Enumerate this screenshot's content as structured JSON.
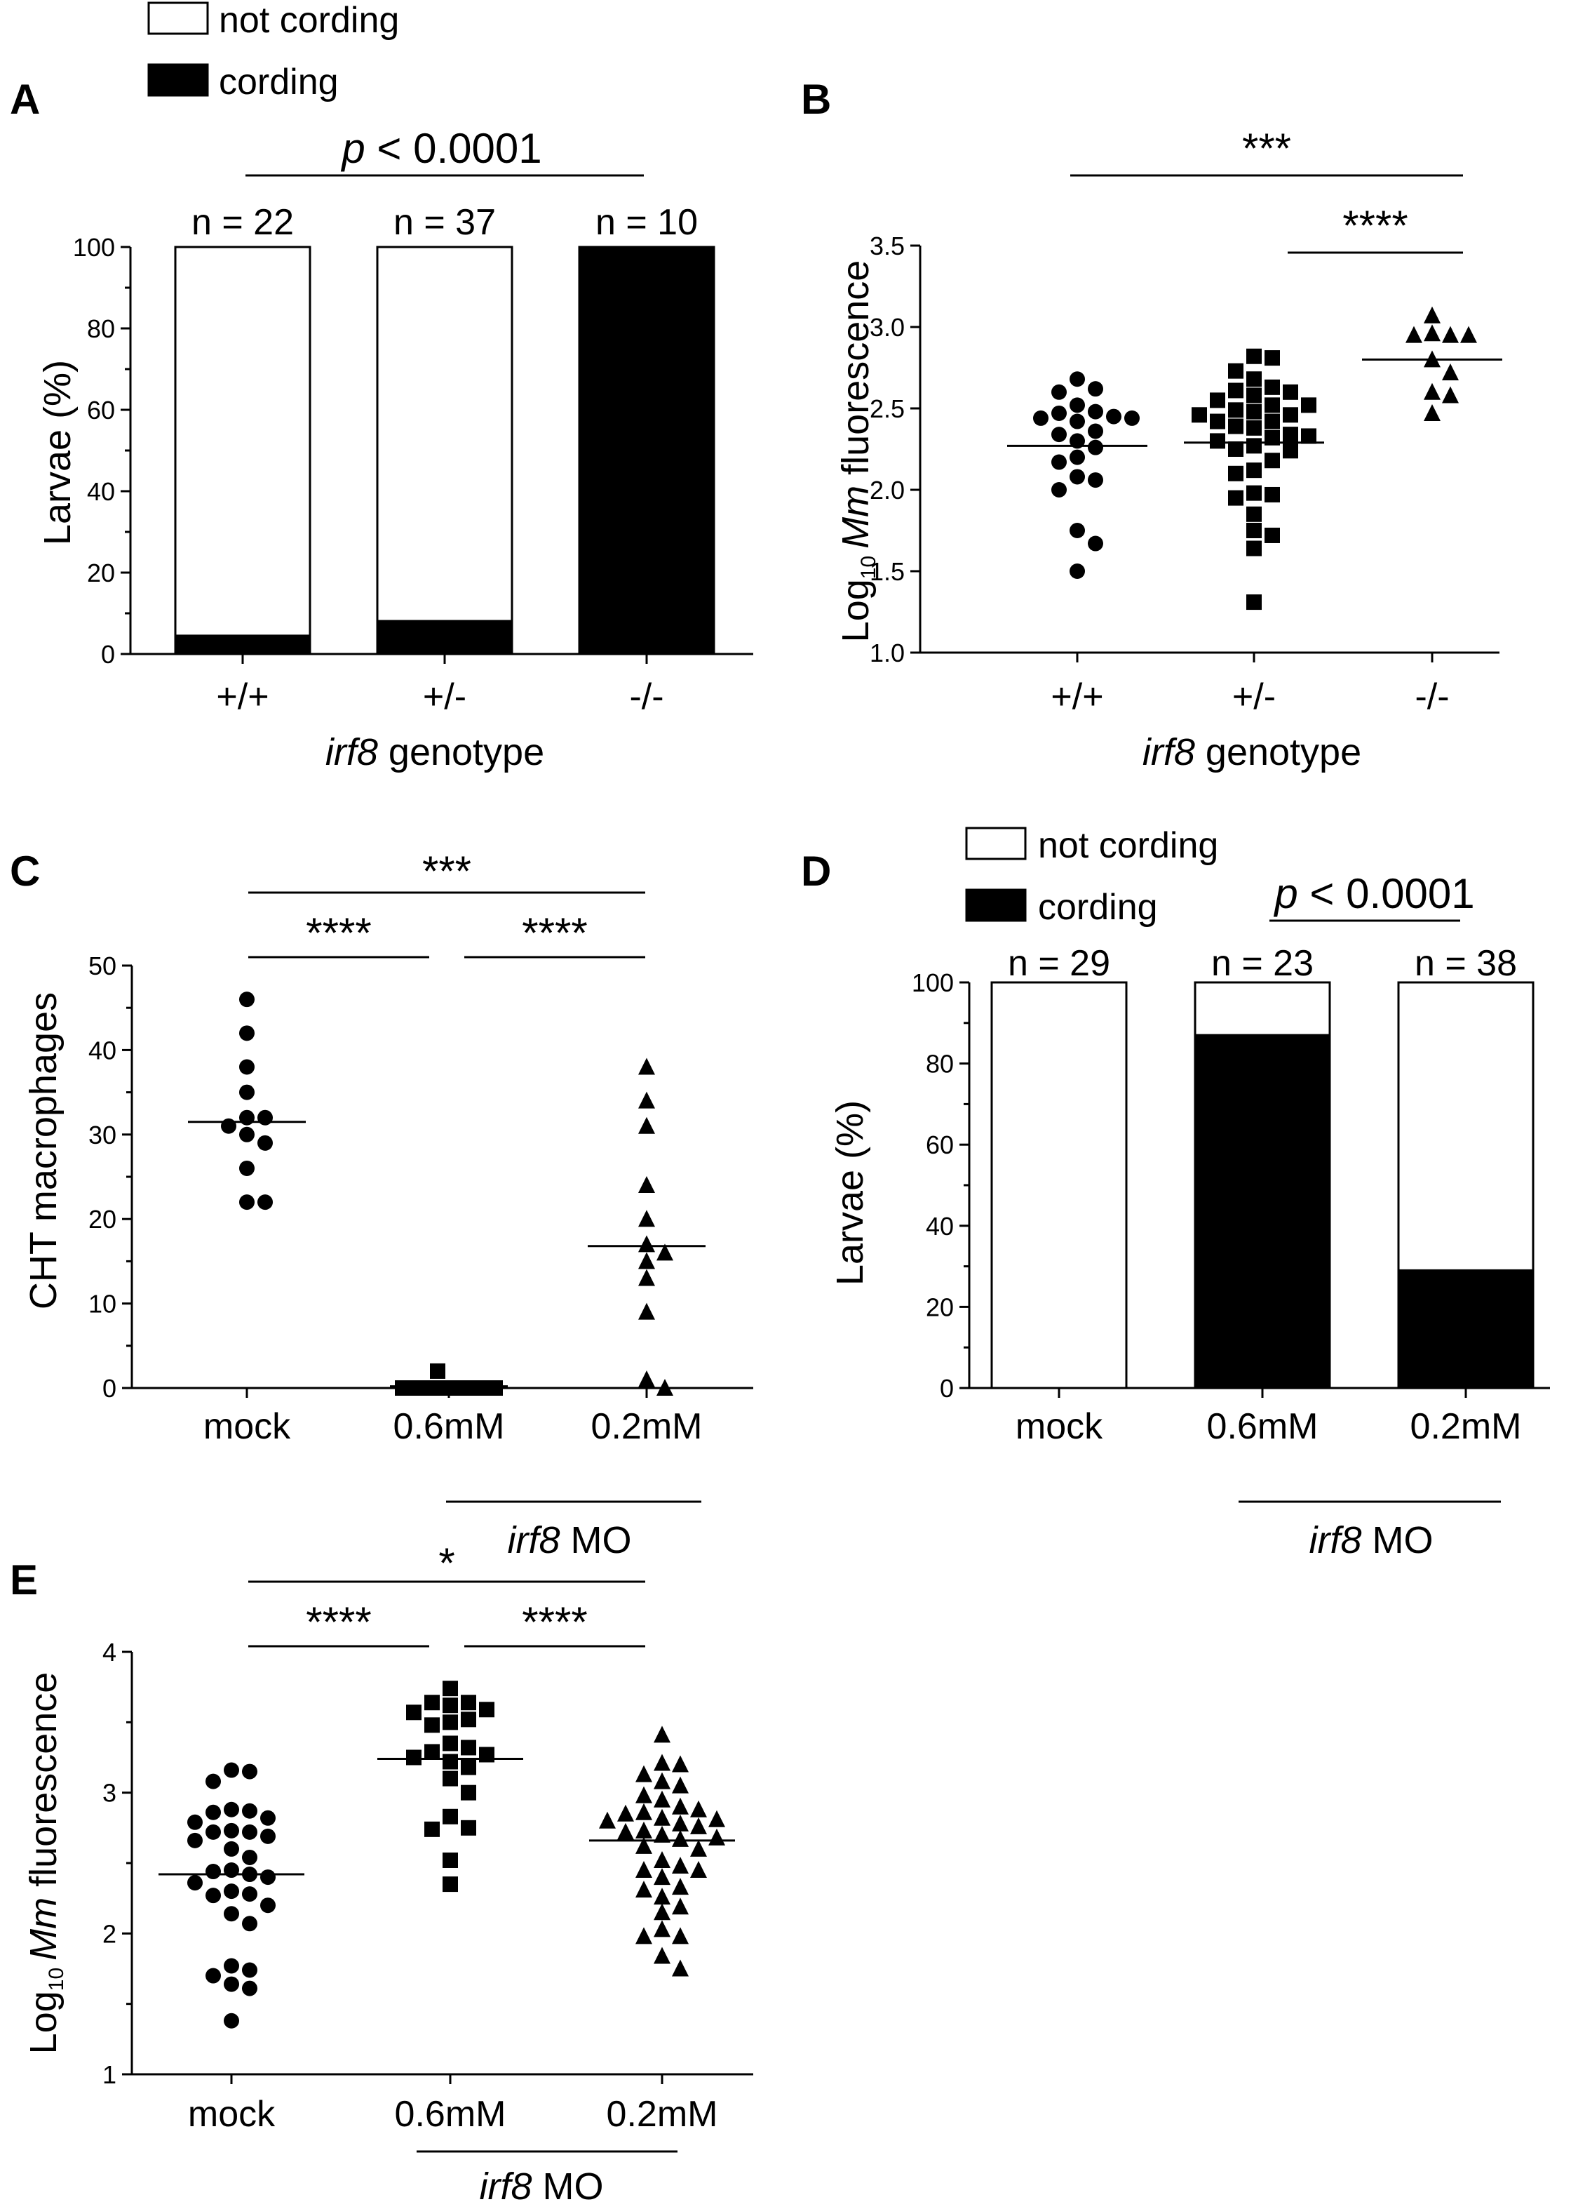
{
  "panels": {
    "A": {
      "letter": "A",
      "legend": [
        "not cording",
        "cording"
      ],
      "xlabel_italic": "irf8",
      "xlabel_rest": " genotype",
      "ylabel": "Larvae (%)",
      "yticks": [
        "0",
        "20",
        "40",
        "60",
        "80",
        "100"
      ],
      "categories": [
        "+/+",
        "+/-",
        "-/-"
      ],
      "n_labels": [
        "n = 22",
        "n = 37",
        "n = 10"
      ],
      "stat_italic": "p",
      "stat_rest": " < 0.0001"
    },
    "B": {
      "letter": "B",
      "ylabel_prefix": "Log",
      "ylabel_sub": "10",
      "ylabel_italic": "Mm",
      "ylabel_rest": " fluorescence",
      "yticks": [
        "1.0",
        "1.5",
        "2.0",
        "2.5",
        "3.0",
        "3.5"
      ],
      "categories": [
        "+/+",
        "+/-",
        "-/-"
      ],
      "xlabel_italic": "irf8",
      "xlabel_rest": " genotype",
      "stats": [
        "***",
        "****"
      ]
    },
    "C": {
      "letter": "C",
      "ylabel": "CHT macrophages",
      "yticks": [
        "0",
        "10",
        "20",
        "30",
        "40",
        "50"
      ],
      "categories": [
        "mock",
        "0.6mM",
        "0.2mM"
      ],
      "group_italic": "irf8",
      "group_rest": " MO",
      "stats": [
        "***",
        "****",
        "****"
      ]
    },
    "D": {
      "letter": "D",
      "legend": [
        "not cording",
        "cording"
      ],
      "ylabel": "Larvae (%)",
      "yticks": [
        "0",
        "20",
        "40",
        "60",
        "80",
        "100"
      ],
      "categories": [
        "mock",
        "0.6mM",
        "0.2mM"
      ],
      "n_labels": [
        "n = 29",
        "n = 23",
        "n = 38"
      ],
      "group_italic": "irf8",
      "group_rest": " MO",
      "stat_italic": "p",
      "stat_rest": " < 0.0001"
    },
    "E": {
      "letter": "E",
      "ylabel_prefix": "Log",
      "ylabel_sub": "10",
      "ylabel_italic": "Mm",
      "ylabel_rest": " fluorescence",
      "yticks": [
        "1",
        "2",
        "3",
        "4"
      ],
      "categories": [
        "mock",
        "0.6mM",
        "0.2mM"
      ],
      "group_italic": "irf8",
      "group_rest": " MO",
      "stats": [
        "*",
        "****",
        "****"
      ]
    }
  },
  "chart_data": [
    {
      "panel": "A",
      "type": "bar",
      "stacked": true,
      "categories": [
        "+/+",
        "+/-",
        "-/-"
      ],
      "series": [
        {
          "name": "cording",
          "color": "#000000",
          "values": [
            4.5,
            8.1,
            100
          ]
        },
        {
          "name": "not cording",
          "color": "#ffffff",
          "values": [
            95.5,
            91.9,
            0
          ]
        }
      ],
      "ylim": [
        0,
        100
      ],
      "n": [
        22,
        37,
        10
      ],
      "comparisons": [
        {
          "from": 0,
          "to": 2,
          "label": "p < 0.0001"
        }
      ]
    },
    {
      "panel": "B",
      "type": "scatter",
      "categories": [
        "+/+",
        "+/-",
        "-/-"
      ],
      "ylim": [
        1.0,
        3.5
      ],
      "series": [
        {
          "category": "+/+",
          "marker": "circle",
          "mean": 2.27,
          "values": [
            2.68,
            2.62,
            2.6,
            2.52,
            2.48,
            2.47,
            2.45,
            2.44,
            2.44,
            2.42,
            2.36,
            2.34,
            2.3,
            2.26,
            2.2,
            2.17,
            2.08,
            2.06,
            2.0,
            1.75,
            1.67,
            1.5
          ]
        },
        {
          "category": "+/-",
          "marker": "square",
          "mean": 2.29,
          "values": [
            2.82,
            2.81,
            2.73,
            2.68,
            2.63,
            2.61,
            2.6,
            2.58,
            2.55,
            2.52,
            2.52,
            2.49,
            2.48,
            2.46,
            2.46,
            2.42,
            2.42,
            2.39,
            2.38,
            2.34,
            2.33,
            2.32,
            2.3,
            2.27,
            2.25,
            2.24,
            2.18,
            2.12,
            2.1,
            1.98,
            1.97,
            1.95,
            1.85,
            1.75,
            1.72,
            1.64,
            1.31
          ]
        },
        {
          "category": "-/-",
          "marker": "triangle",
          "mean": 2.8,
          "values": [
            3.07,
            2.96,
            2.95,
            2.95,
            2.95,
            2.8,
            2.72,
            2.6,
            2.58,
            2.47
          ]
        }
      ],
      "comparisons": [
        {
          "from": 0,
          "to": 2,
          "label": "***"
        },
        {
          "from": 1,
          "to": 2,
          "label": "****"
        }
      ]
    },
    {
      "panel": "C",
      "type": "scatter",
      "categories": [
        "mock",
        "0.6mM",
        "0.2mM"
      ],
      "ylim": [
        0,
        50
      ],
      "series": [
        {
          "category": "mock",
          "marker": "circle",
          "mean": 31.5,
          "values": [
            46,
            42,
            38,
            35,
            32,
            32,
            31,
            30,
            29,
            26,
            22,
            22
          ]
        },
        {
          "category": "0.6mM",
          "marker": "square",
          "mean": 0.2,
          "values": [
            2,
            0,
            0,
            0,
            0,
            0,
            0,
            0,
            0,
            0,
            0,
            0,
            0
          ]
        },
        {
          "category": "0.2mM",
          "marker": "triangle",
          "mean": 16.8,
          "values": [
            38,
            34,
            31,
            24,
            20,
            17,
            16,
            15,
            13,
            9,
            1,
            0
          ]
        }
      ],
      "comparisons": [
        {
          "from": 0,
          "to": 2,
          "label": "***"
        },
        {
          "from": 0,
          "to": 1,
          "label": "****"
        },
        {
          "from": 1,
          "to": 2,
          "label": "****"
        }
      ]
    },
    {
      "panel": "D",
      "type": "bar",
      "stacked": true,
      "categories": [
        "mock",
        "0.6mM",
        "0.2mM"
      ],
      "series": [
        {
          "name": "cording",
          "color": "#000000",
          "values": [
            0,
            87,
            29
          ]
        },
        {
          "name": "not cording",
          "color": "#ffffff",
          "values": [
            100,
            13,
            71
          ]
        }
      ],
      "ylim": [
        0,
        100
      ],
      "n": [
        29,
        23,
        38
      ],
      "comparisons": [
        {
          "from": 1,
          "to": 2,
          "label": "p < 0.0001"
        }
      ]
    },
    {
      "panel": "E",
      "type": "scatter",
      "categories": [
        "mock",
        "0.6mM",
        "0.2mM"
      ],
      "ylim": [
        1,
        4
      ],
      "series": [
        {
          "category": "mock",
          "marker": "circle",
          "mean": 2.42,
          "values": [
            3.16,
            3.15,
            3.08,
            2.88,
            2.87,
            2.86,
            2.82,
            2.79,
            2.73,
            2.72,
            2.72,
            2.69,
            2.66,
            2.6,
            2.54,
            2.45,
            2.44,
            2.42,
            2.4,
            2.36,
            2.3,
            2.28,
            2.27,
            2.2,
            2.14,
            2.07,
            1.77,
            1.74,
            1.7,
            1.64,
            1.61,
            1.38
          ]
        },
        {
          "category": "0.6mM",
          "marker": "square",
          "mean": 3.24,
          "values": [
            3.74,
            3.64,
            3.64,
            3.62,
            3.59,
            3.57,
            3.52,
            3.5,
            3.48,
            3.35,
            3.32,
            3.29,
            3.27,
            3.25,
            3.22,
            3.18,
            3.1,
            3.0,
            2.83,
            2.75,
            2.74,
            2.52,
            2.35
          ]
        },
        {
          "category": "0.2mM",
          "marker": "triangle",
          "mean": 2.66,
          "values": [
            3.41,
            3.21,
            3.2,
            3.13,
            3.08,
            3.05,
            2.98,
            2.95,
            2.9,
            2.88,
            2.86,
            2.85,
            2.82,
            2.81,
            2.8,
            2.78,
            2.76,
            2.73,
            2.72,
            2.7,
            2.68,
            2.67,
            2.62,
            2.6,
            2.52,
            2.48,
            2.45,
            2.45,
            2.4,
            2.33,
            2.31,
            2.26,
            2.19,
            2.15,
            2.03,
            1.98,
            1.98,
            1.84,
            1.75
          ]
        }
      ],
      "comparisons": [
        {
          "from": 0,
          "to": 2,
          "label": "*"
        },
        {
          "from": 0,
          "to": 1,
          "label": "****"
        },
        {
          "from": 1,
          "to": 2,
          "label": "****"
        }
      ]
    }
  ]
}
